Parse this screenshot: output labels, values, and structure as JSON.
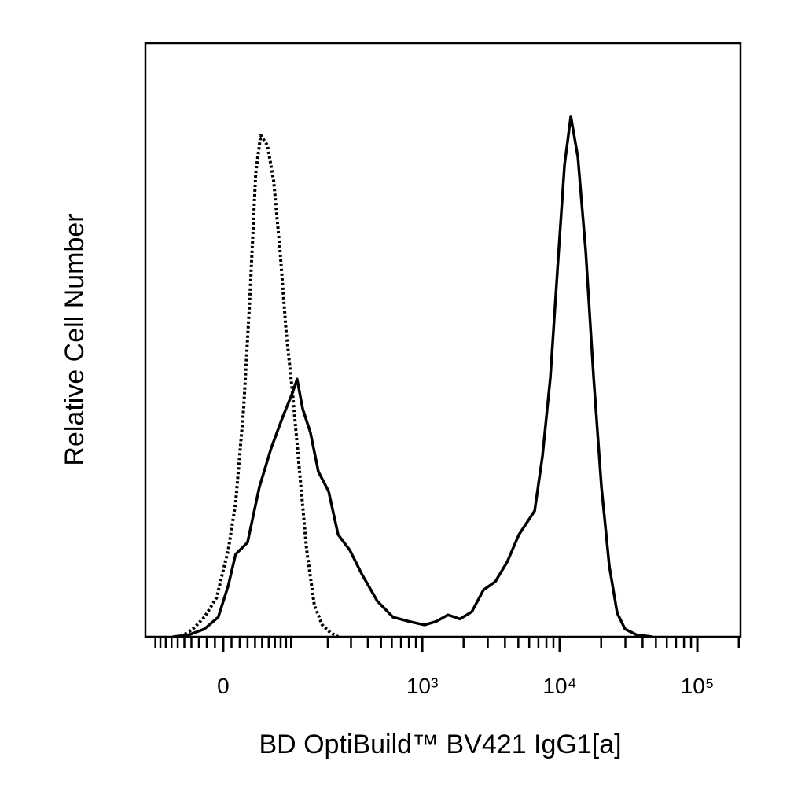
{
  "chart_data": {
    "type": "line",
    "x_label": "BD OptiBuild™ BV421 IgG1[a]",
    "y_label": "Relative Cell Number",
    "xscale": "asinh",
    "xlim": [
      -122,
      206000
    ],
    "ylim": [
      0,
      100
    ],
    "xticks": [
      0,
      {
        "value": 1000,
        "label": "10³"
      },
      {
        "value": 10000,
        "label": "10⁴"
      },
      {
        "value": 100000,
        "label": "10⁵"
      }
    ],
    "xminor_ticks": [
      -100,
      -90,
      -80,
      -70,
      -60,
      -50,
      -40,
      -30,
      -20,
      -10,
      10,
      20,
      30,
      40,
      50,
      60,
      70,
      80,
      90,
      100,
      200,
      300,
      400,
      500,
      600,
      700,
      800,
      900,
      2000,
      3000,
      4000,
      5000,
      6000,
      7000,
      8000,
      9000,
      20000,
      30000,
      40000,
      50000,
      60000,
      70000,
      80000,
      90000,
      200000
    ],
    "series": [
      {
        "color": "#000000",
        "line_style": "dotted",
        "x": [
          -55,
          -38,
          -23,
          -8,
          6,
          15,
          25,
          33,
          41,
          48,
          58,
          68,
          79,
          90,
          103,
          117,
          136,
          157,
          181,
          209,
          240
        ],
        "values": [
          0,
          1.3,
          3.3,
          6.6,
          14.6,
          22.5,
          38.4,
          57,
          78.1,
          84.5,
          82.8,
          76.8,
          64.9,
          51.7,
          41.1,
          29.1,
          14.6,
          5.3,
          2,
          0.7,
          0
        ]
      },
      {
        "color": "#000000",
        "line_style": "solid",
        "x": [
          -68,
          -44,
          -23,
          -6,
          6,
          15,
          30,
          46,
          64,
          84,
          103,
          113,
          126,
          146,
          169,
          203,
          240,
          294,
          360,
          470,
          613,
          799,
          1040,
          1269,
          1542,
          1879,
          2294,
          2789,
          3406,
          4144,
          5048,
          5758,
          6568,
          7493,
          8547,
          9744,
          10826,
          12031,
          13544,
          15451,
          17624,
          20098,
          22922,
          26149,
          29827,
          36280,
          47250
        ],
        "values": [
          0,
          0.3,
          1.3,
          3.3,
          8.6,
          13.9,
          15.9,
          25.2,
          31.8,
          37.1,
          41.1,
          43.4,
          38.4,
          34.4,
          27.8,
          24.5,
          17.2,
          14.6,
          10.6,
          6,
          3.3,
          2.6,
          2,
          2.6,
          3.7,
          3,
          4.2,
          7.9,
          9.3,
          12.6,
          17.2,
          19.2,
          21.2,
          30.5,
          43.7,
          63.6,
          79.5,
          87.7,
          80.8,
          64.9,
          43.7,
          25.2,
          11.9,
          4,
          1.3,
          0.3,
          0
        ]
      }
    ]
  }
}
